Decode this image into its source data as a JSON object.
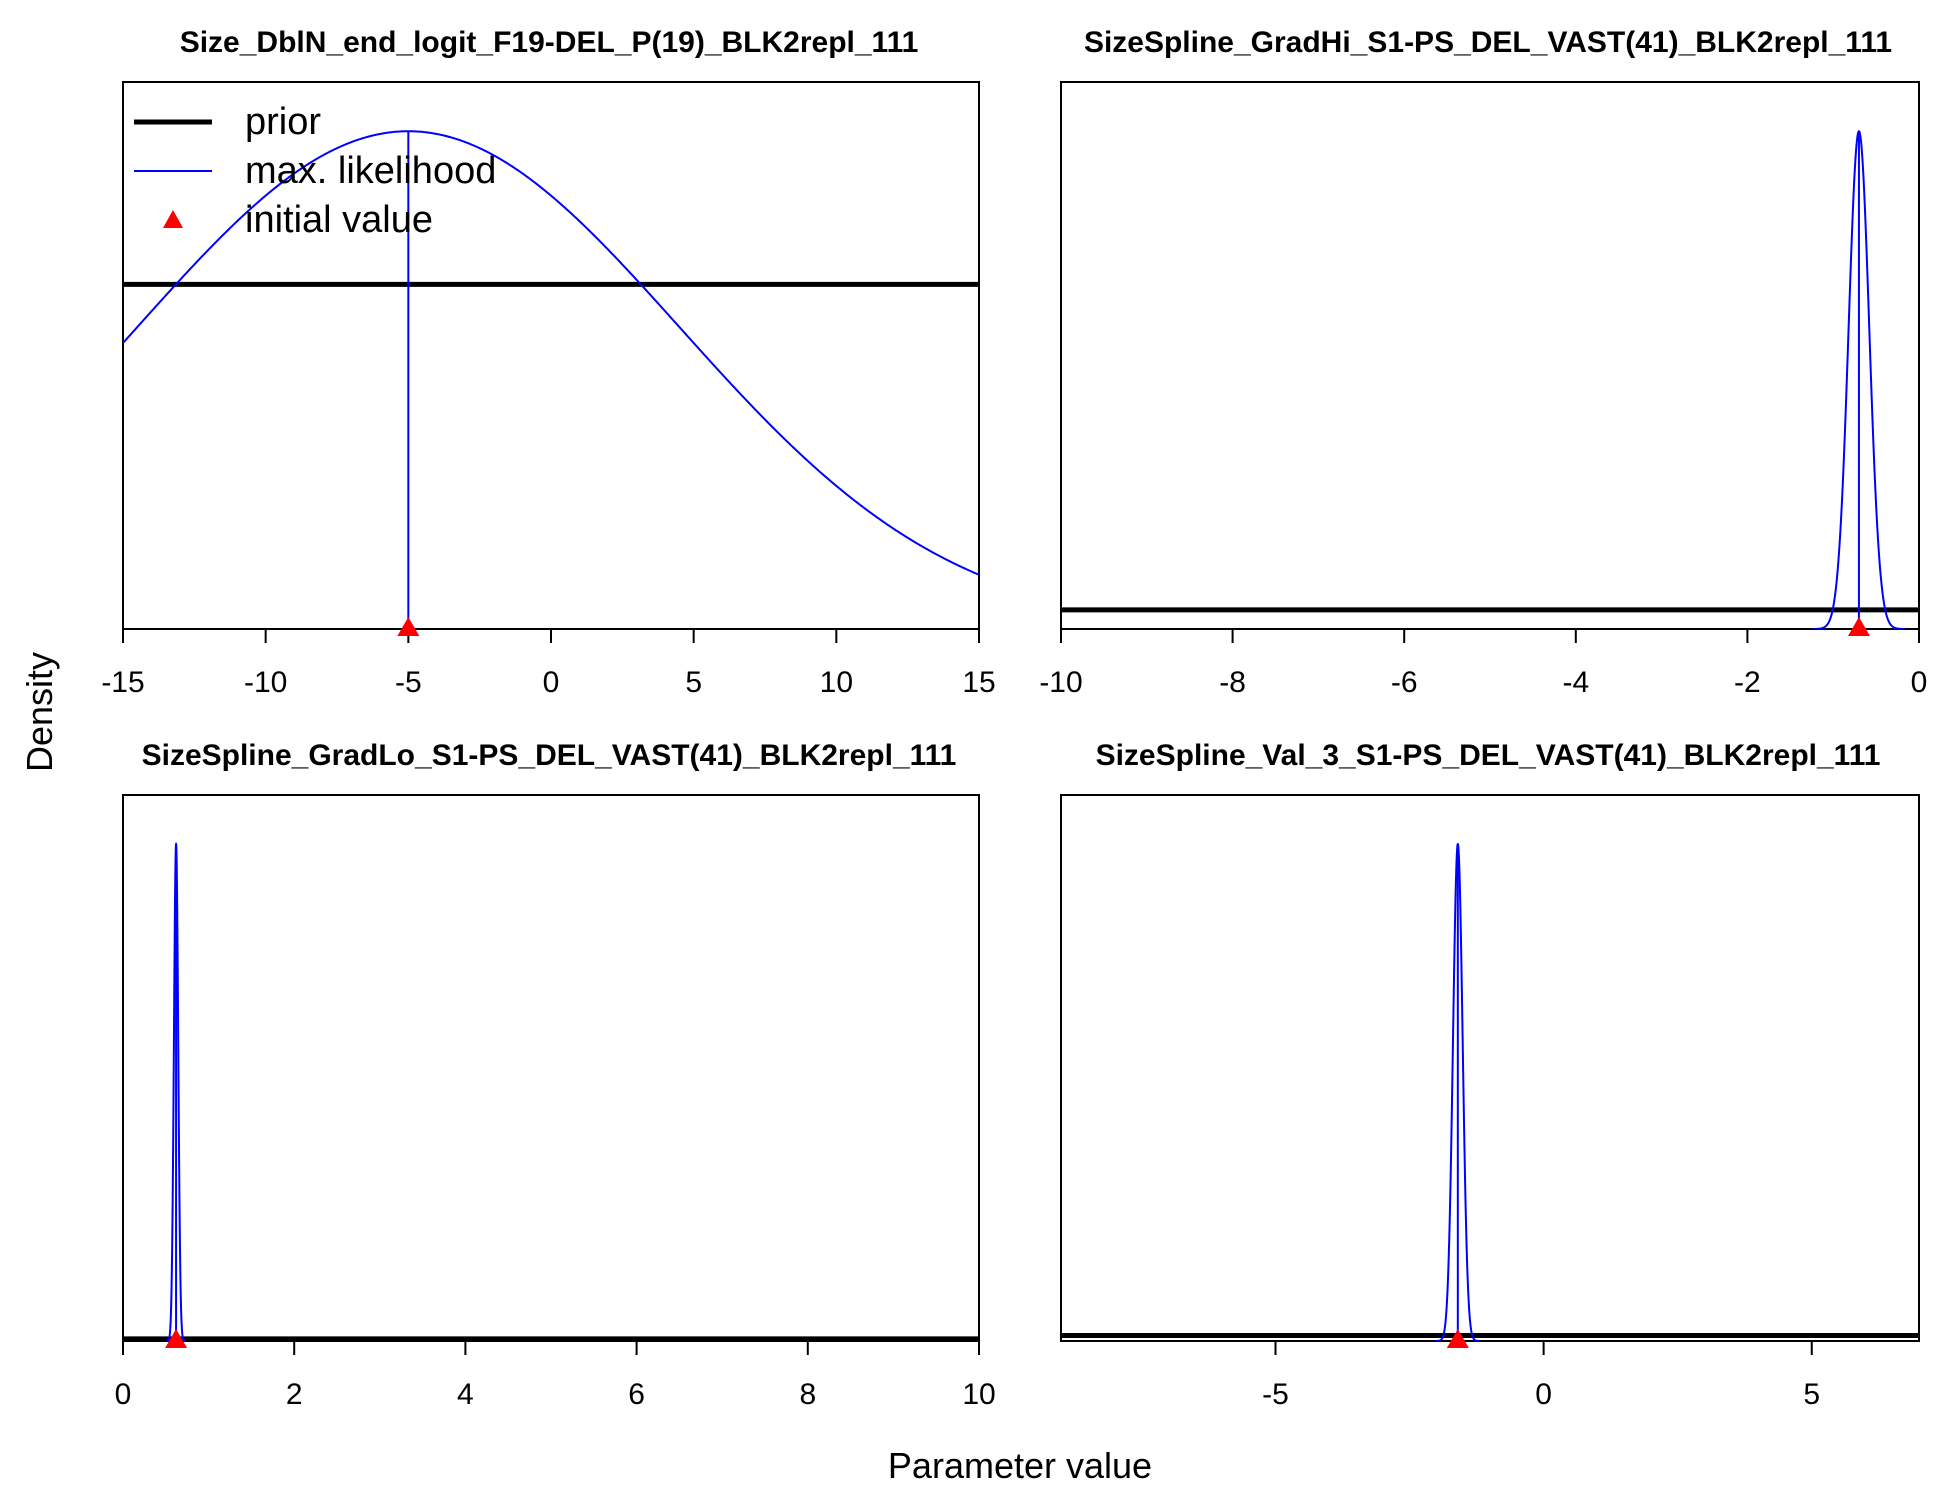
{
  "xlabel": "Parameter value",
  "ylabel": "Density",
  "legend": [
    {
      "label": "prior",
      "color": "#000000",
      "symbol": "thick-line"
    },
    {
      "label": "max. likelihood",
      "color": "#0000ff",
      "symbol": "thin-line"
    },
    {
      "label": "initial value",
      "color": "#ff0000",
      "symbol": "triangle"
    }
  ],
  "chart_data": [
    {
      "type": "line",
      "title": "Size_DblN_end_logit_F19-DEL_P(19)_BLK2repl_111",
      "xlim": [
        -15,
        15
      ],
      "xticks": [
        -15,
        -10,
        -5,
        0,
        5,
        10,
        15
      ],
      "ylim": [
        0,
        1
      ],
      "series": [
        {
          "name": "prior",
          "type": "flat",
          "value": 0.63
        },
        {
          "name": "max. likelihood",
          "type": "normal",
          "mean": -5,
          "sd": 9.5,
          "peak": 0.91
        }
      ],
      "mle": -5,
      "initial_value": -5
    },
    {
      "type": "line",
      "title": "SizeSpline_GradHi_S1-PS_DEL_VAST(41)_BLK2repl_111",
      "xlim": [
        -10,
        0
      ],
      "xticks": [
        -10,
        -8,
        -6,
        -4,
        -2,
        0
      ],
      "ylim": [
        0,
        1
      ],
      "series": [
        {
          "name": "prior",
          "type": "flat",
          "value": 0.035
        },
        {
          "name": "max. likelihood",
          "type": "normal",
          "mean": -0.7,
          "sd": 0.12,
          "peak": 0.91
        }
      ],
      "mle": -0.7,
      "initial_value": -0.7
    },
    {
      "type": "line",
      "title": "SizeSpline_GradLo_S1-PS_DEL_VAST(41)_BLK2repl_111",
      "xlim": [
        0,
        10
      ],
      "xticks": [
        0,
        2,
        4,
        6,
        8,
        10
      ],
      "ylim": [
        0,
        1
      ],
      "series": [
        {
          "name": "prior",
          "type": "flat",
          "value": 0.004
        },
        {
          "name": "max. likelihood",
          "type": "normal",
          "mean": 0.62,
          "sd": 0.025,
          "peak": 0.91
        }
      ],
      "mle": 0.62,
      "initial_value": 0.62
    },
    {
      "type": "line",
      "title": "SizeSpline_Val_3_S1-PS_DEL_VAST(41)_BLK2repl_111",
      "xlim": [
        -9,
        7
      ],
      "xticks": [
        -5,
        0,
        5
      ],
      "ylim": [
        0,
        1
      ],
      "series": [
        {
          "name": "prior",
          "type": "flat",
          "value": 0.01
        },
        {
          "name": "max. likelihood",
          "type": "normal",
          "mean": -1.6,
          "sd": 0.09,
          "peak": 0.91
        }
      ],
      "mle": -1.6,
      "initial_value": -1.6
    }
  ]
}
